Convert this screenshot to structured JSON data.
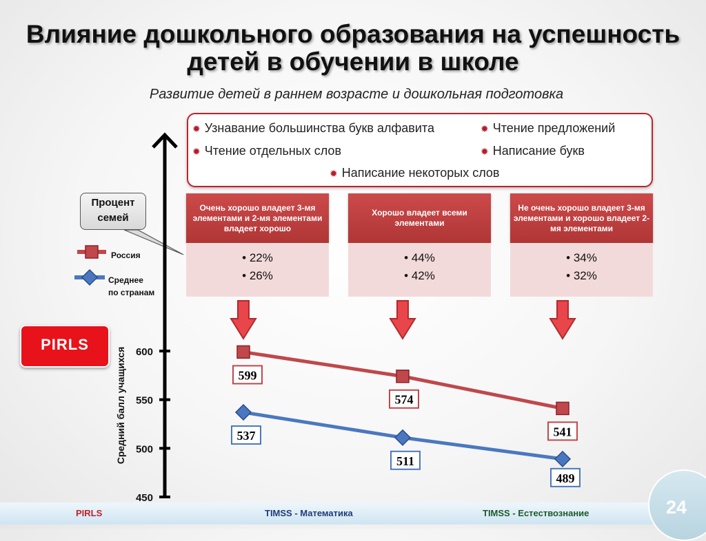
{
  "title": "Влияние дошкольного образования на успешность детей в обучении в школе",
  "subtitle": "Развитие детей в раннем возрасте и дошкольная подготовка",
  "skills": [
    "Узнавание большинства букв алфавита",
    "Чтение предложений",
    "Чтение отдельных слов",
    "Написание букв",
    "Написание некоторых слов"
  ],
  "callout": "Процент семей",
  "legend": {
    "russia": "Россия",
    "avg_line1": "Среднее",
    "avg_line2": "по странам"
  },
  "columns": [
    {
      "header": "Очень хорошо владеет 3-мя элементами и 2-мя элементами владеет хорошо",
      "values": [
        "• 22%",
        "• 26%"
      ]
    },
    {
      "header": "Хорошо владеет всеми элементами",
      "values": [
        "• 44%",
        "• 42%"
      ]
    },
    {
      "header": "Не очень хорошо владеет 3-мя элементами и хорошо владеет 2-мя элементами",
      "values": [
        "• 34%",
        "• 32%"
      ]
    }
  ],
  "badge": "PIRLS",
  "colors": {
    "russia": "#c0474b",
    "average": "#4a78c0",
    "accent": "#c0202a"
  },
  "chart_data": {
    "type": "line",
    "categories": [
      "",
      "",
      ""
    ],
    "ylabel": "Средний балл учащихся",
    "ylim": [
      450,
      600
    ],
    "yticks": [
      600,
      550,
      500,
      450
    ],
    "series": [
      {
        "name": "Россия",
        "values": [
          599,
          574,
          541
        ]
      },
      {
        "name": "Среднее по странам",
        "values": [
          537,
          511,
          489
        ]
      }
    ]
  },
  "footer": {
    "left": "PIRLS",
    "center": "TIMSS - Математика",
    "right": "TIMSS - Естествознание"
  },
  "page_number": "24"
}
